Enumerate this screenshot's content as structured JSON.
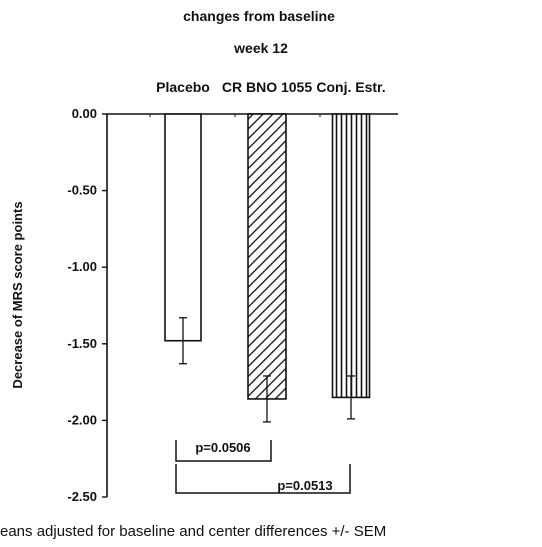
{
  "chart_data": {
    "type": "bar",
    "title": "changes from baseline",
    "subtitle": "week 12",
    "categories": [
      "Placebo",
      "CR BNO 1055",
      "Conj. Estr."
    ],
    "values": [
      -1.48,
      -1.86,
      -1.85
    ],
    "errors": [
      0.15,
      0.15,
      0.14
    ],
    "ylabel": "Decrease of MRS score points",
    "xlabel": "",
    "ylim": [
      -2.5,
      0.0
    ],
    "yticks": [
      "0.00",
      "-0.50",
      "-1.00",
      "-1.50",
      "-2.00",
      "-2.50"
    ],
    "ytick_values": [
      0.0,
      -0.5,
      -1.0,
      -1.5,
      -2.0,
      -2.5
    ],
    "bar_styles": [
      "open",
      "diagonal-hatch",
      "vertical-hatch"
    ],
    "annotations": [
      {
        "label": "p=0.0506",
        "from": 0,
        "to": 1
      },
      {
        "label": "p=0.0513",
        "from": 0,
        "to": 2
      }
    ],
    "footnote": "eans adjusted for baseline and center differences +/- SEM",
    "grid": false,
    "legend": "none"
  }
}
